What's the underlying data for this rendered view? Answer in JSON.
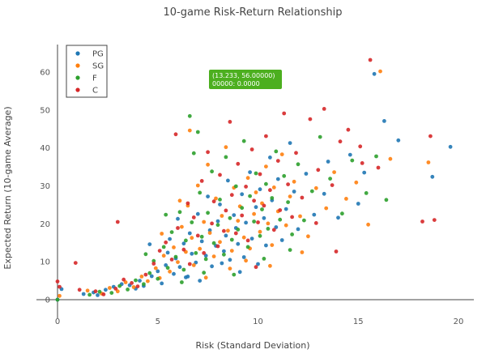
{
  "chart_data": {
    "type": "scatter",
    "title": "10-game Risk-Return Relationship",
    "xlabel": "Risk (Standard Deviation)",
    "ylabel": "Expected Return (10-game Average)",
    "xlim": [
      -1,
      21
    ],
    "ylim": [
      -2,
      66
    ],
    "xticks": [
      0,
      5,
      10,
      15,
      20
    ],
    "yticks": [
      0,
      10,
      20,
      30,
      40,
      50,
      60
    ],
    "grid": false,
    "legend_position": "top-left",
    "tooltip": {
      "line1": "(13.233, 56.00000)",
      "line2": "00000: 0.0000",
      "color": "#4caf1f"
    },
    "series": [
      {
        "name": "PG",
        "color": "#1f77b4",
        "points": [
          [
            0,
            0
          ],
          [
            0.2,
            2.8
          ],
          [
            1.3,
            1.5
          ],
          [
            1.8,
            1.9
          ],
          [
            2.0,
            1.2
          ],
          [
            2.4,
            2.6
          ],
          [
            2.8,
            3.4
          ],
          [
            3.2,
            4.1
          ],
          [
            3.6,
            3.8
          ],
          [
            3.9,
            2.9
          ],
          [
            4.1,
            5.0
          ],
          [
            4.3,
            3.6
          ],
          [
            4.7,
            6.2
          ],
          [
            5.0,
            7.5
          ],
          [
            5.2,
            4.3
          ],
          [
            5.4,
            9.1
          ],
          [
            5.5,
            12.4
          ],
          [
            5.8,
            6.8
          ],
          [
            5.9,
            10.9
          ],
          [
            6.1,
            8.6
          ],
          [
            6.3,
            14.8
          ],
          [
            6.4,
            5.9
          ],
          [
            6.6,
            17.5
          ],
          [
            6.7,
            12.1
          ],
          [
            6.9,
            9.8
          ],
          [
            7.0,
            22.6
          ],
          [
            7.2,
            15.4
          ],
          [
            7.4,
            11.6
          ],
          [
            7.5,
            27.2
          ],
          [
            7.6,
            18.3
          ],
          [
            7.7,
            8.8
          ],
          [
            7.9,
            14.2
          ],
          [
            8.0,
            20.7
          ],
          [
            8.1,
            25.1
          ],
          [
            8.3,
            12.8
          ],
          [
            8.4,
            16.9
          ],
          [
            8.5,
            31.4
          ],
          [
            8.6,
            10.5
          ],
          [
            8.8,
            22.3
          ],
          [
            8.9,
            18.9
          ],
          [
            9.0,
            14.7
          ],
          [
            9.2,
            27.8
          ],
          [
            9.3,
            11.2
          ],
          [
            9.4,
            20.3
          ],
          [
            9.6,
            33.6
          ],
          [
            9.7,
            16.1
          ],
          [
            9.9,
            24.4
          ],
          [
            10.0,
            9.4
          ],
          [
            10.1,
            29.1
          ],
          [
            10.3,
            21.5
          ],
          [
            10.4,
            14.3
          ],
          [
            10.6,
            37.5
          ],
          [
            10.7,
            26.2
          ],
          [
            10.9,
            19.1
          ],
          [
            11.0,
            31.8
          ],
          [
            11.2,
            15.7
          ],
          [
            11.4,
            23.9
          ],
          [
            11.6,
            41.3
          ],
          [
            11.8,
            28.5
          ],
          [
            12.0,
            18.6
          ],
          [
            12.4,
            33.2
          ],
          [
            12.8,
            22.4
          ],
          [
            13.3,
            27.9
          ],
          [
            13.5,
            36.4
          ],
          [
            14.0,
            21.6
          ],
          [
            14.6,
            38.2
          ],
          [
            15.0,
            25.3
          ],
          [
            15.3,
            33.5
          ],
          [
            15.8,
            59.5
          ],
          [
            16.3,
            47.1
          ],
          [
            17.0,
            42.0
          ],
          [
            18.7,
            32.4
          ],
          [
            19.6,
            40.3
          ],
          [
            6.5,
            6.1
          ],
          [
            7.1,
            5.0
          ],
          [
            8.2,
            9.6
          ],
          [
            9.1,
            7.3
          ],
          [
            5.6,
            16.0
          ],
          [
            6.0,
            21.3
          ],
          [
            4.6,
            14.6
          ]
        ]
      },
      {
        "name": "SG",
        "color": "#ff7f0e",
        "points": [
          [
            0.1,
            1.0
          ],
          [
            1.5,
            2.4
          ],
          [
            2.2,
            1.6
          ],
          [
            2.6,
            3.1
          ],
          [
            3.0,
            2.2
          ],
          [
            3.4,
            4.6
          ],
          [
            3.8,
            3.3
          ],
          [
            4.2,
            6.1
          ],
          [
            4.5,
            4.9
          ],
          [
            4.9,
            8.3
          ],
          [
            5.1,
            5.7
          ],
          [
            5.3,
            11.6
          ],
          [
            5.6,
            7.4
          ],
          [
            5.8,
            13.8
          ],
          [
            6.0,
            9.9
          ],
          [
            6.2,
            19.2
          ],
          [
            6.4,
            12.6
          ],
          [
            6.5,
            24.8
          ],
          [
            6.7,
            16.3
          ],
          [
            6.8,
            9.1
          ],
          [
            7.0,
            30.1
          ],
          [
            7.1,
            13.4
          ],
          [
            7.3,
            20.5
          ],
          [
            7.5,
            35.6
          ],
          [
            7.6,
            17.6
          ],
          [
            7.8,
            11.4
          ],
          [
            7.9,
            26.7
          ],
          [
            8.1,
            15.2
          ],
          [
            8.2,
            22.1
          ],
          [
            8.4,
            40.2
          ],
          [
            8.5,
            18.2
          ],
          [
            8.7,
            12.9
          ],
          [
            8.8,
            29.5
          ],
          [
            9.0,
            20.8
          ],
          [
            9.1,
            24.6
          ],
          [
            9.3,
            16.4
          ],
          [
            9.5,
            32.1
          ],
          [
            9.6,
            13.5
          ],
          [
            9.8,
            22.6
          ],
          [
            9.9,
            28.3
          ],
          [
            10.1,
            17.9
          ],
          [
            10.2,
            25.4
          ],
          [
            10.4,
            35.1
          ],
          [
            10.5,
            20.1
          ],
          [
            10.7,
            14.4
          ],
          [
            10.8,
            29.6
          ],
          [
            11.0,
            23.3
          ],
          [
            11.2,
            38.3
          ],
          [
            11.4,
            19.6
          ],
          [
            11.6,
            27.2
          ],
          [
            11.8,
            31.1
          ],
          [
            12.1,
            22.0
          ],
          [
            12.5,
            16.7
          ],
          [
            12.9,
            29.4
          ],
          [
            13.4,
            24.1
          ],
          [
            13.8,
            33.6
          ],
          [
            14.4,
            26.6
          ],
          [
            14.9,
            30.9
          ],
          [
            15.5,
            19.8
          ],
          [
            16.1,
            60.2
          ],
          [
            16.6,
            37.1
          ],
          [
            18.5,
            36.2
          ],
          [
            6.6,
            44.6
          ],
          [
            7.4,
            5.8
          ],
          [
            8.6,
            8.2
          ],
          [
            9.4,
            10.3
          ],
          [
            10.6,
            8.9
          ],
          [
            12.2,
            12.5
          ],
          [
            5.2,
            17.4
          ],
          [
            6.1,
            26.1
          ]
        ]
      },
      {
        "name": "F",
        "color": "#2ca02c",
        "points": [
          [
            0,
            0
          ],
          [
            1.6,
            1.3
          ],
          [
            2.1,
            2.1
          ],
          [
            2.7,
            1.8
          ],
          [
            3.1,
            3.6
          ],
          [
            3.5,
            2.7
          ],
          [
            3.9,
            5.1
          ],
          [
            4.3,
            4.1
          ],
          [
            4.6,
            7.0
          ],
          [
            4.8,
            10.2
          ],
          [
            5.0,
            5.5
          ],
          [
            5.3,
            13.9
          ],
          [
            5.5,
            8.4
          ],
          [
            5.7,
            17.8
          ],
          [
            5.9,
            11.3
          ],
          [
            6.1,
            23.1
          ],
          [
            6.3,
            7.9
          ],
          [
            6.4,
            15.6
          ],
          [
            6.6,
            48.4
          ],
          [
            6.7,
            20.4
          ],
          [
            6.9,
            12.3
          ],
          [
            7.1,
            28.2
          ],
          [
            7.2,
            16.6
          ],
          [
            7.4,
            10.7
          ],
          [
            7.5,
            22.9
          ],
          [
            7.7,
            33.8
          ],
          [
            7.8,
            14.9
          ],
          [
            8.0,
            19.7
          ],
          [
            8.1,
            26.4
          ],
          [
            8.3,
            11.9
          ],
          [
            8.4,
            37.6
          ],
          [
            8.6,
            21.5
          ],
          [
            8.7,
            15.8
          ],
          [
            8.9,
            29.9
          ],
          [
            9.0,
            18.5
          ],
          [
            9.2,
            24.2
          ],
          [
            9.3,
            41.8
          ],
          [
            9.5,
            13.9
          ],
          [
            9.6,
            27.3
          ],
          [
            9.8,
            20.6
          ],
          [
            9.9,
            33.3
          ],
          [
            10.1,
            16.8
          ],
          [
            10.2,
            23.8
          ],
          [
            10.4,
            30.5
          ],
          [
            10.5,
            18.7
          ],
          [
            10.7,
            26.8
          ],
          [
            10.9,
            39.1
          ],
          [
            11.1,
            21.1
          ],
          [
            11.3,
            32.6
          ],
          [
            11.5,
            25.7
          ],
          [
            11.7,
            17.2
          ],
          [
            12.0,
            35.7
          ],
          [
            12.3,
            20.9
          ],
          [
            12.7,
            28.6
          ],
          [
            13.1,
            42.9
          ],
          [
            13.6,
            31.9
          ],
          [
            14.2,
            22.7
          ],
          [
            14.7,
            36.7
          ],
          [
            15.4,
            28.1
          ],
          [
            15.9,
            37.8
          ],
          [
            16.4,
            26.3
          ],
          [
            6.8,
            38.6
          ],
          [
            6.2,
            4.6
          ],
          [
            7.3,
            7.1
          ],
          [
            8.8,
            6.6
          ],
          [
            10.3,
            10.8
          ],
          [
            11.6,
            13.1
          ],
          [
            5.4,
            22.4
          ],
          [
            4.4,
            12.0
          ],
          [
            7.0,
            44.2
          ]
        ]
      },
      {
        "name": "C",
        "color": "#d62728",
        "points": [
          [
            0,
            4.8
          ],
          [
            0.1,
            3.4
          ],
          [
            0.9,
            9.7
          ],
          [
            1.1,
            2.6
          ],
          [
            1.9,
            2.2
          ],
          [
            2.3,
            1.4
          ],
          [
            2.9,
            2.9
          ],
          [
            3.0,
            20.5
          ],
          [
            3.3,
            5.3
          ],
          [
            3.7,
            4.4
          ],
          [
            4.0,
            3.5
          ],
          [
            4.4,
            6.6
          ],
          [
            4.8,
            9.5
          ],
          [
            5.1,
            12.9
          ],
          [
            5.4,
            15.1
          ],
          [
            5.7,
            10.6
          ],
          [
            5.9,
            43.6
          ],
          [
            6.0,
            18.9
          ],
          [
            6.3,
            13.2
          ],
          [
            6.5,
            25.4
          ],
          [
            6.6,
            9.4
          ],
          [
            6.8,
            21.7
          ],
          [
            7.0,
            16.9
          ],
          [
            7.2,
            31.3
          ],
          [
            7.3,
            12.3
          ],
          [
            7.5,
            38.9
          ],
          [
            7.7,
            20.1
          ],
          [
            7.8,
            25.9
          ],
          [
            8.0,
            14.1
          ],
          [
            8.1,
            32.9
          ],
          [
            8.3,
            18.1
          ],
          [
            8.4,
            23.5
          ],
          [
            8.6,
            46.9
          ],
          [
            8.7,
            27.6
          ],
          [
            8.9,
            17.5
          ],
          [
            9.0,
            35.8
          ],
          [
            9.2,
            22.2
          ],
          [
            9.4,
            29.8
          ],
          [
            9.5,
            15.6
          ],
          [
            9.7,
            39.6
          ],
          [
            9.8,
            26.1
          ],
          [
            10.0,
            20.4
          ],
          [
            10.1,
            33.1
          ],
          [
            10.3,
            24.8
          ],
          [
            10.4,
            43.1
          ],
          [
            10.6,
            28.9
          ],
          [
            10.8,
            18.4
          ],
          [
            11.0,
            36.6
          ],
          [
            11.1,
            23.6
          ],
          [
            11.3,
            49.1
          ],
          [
            11.5,
            30.4
          ],
          [
            11.7,
            21.8
          ],
          [
            11.9,
            38.7
          ],
          [
            12.2,
            26.9
          ],
          [
            12.6,
            47.6
          ],
          [
            13.0,
            34.2
          ],
          [
            13.3,
            50.3
          ],
          [
            13.7,
            30.2
          ],
          [
            14.1,
            41.7
          ],
          [
            14.5,
            44.8
          ],
          [
            15.1,
            40.4
          ],
          [
            15.6,
            63.2
          ],
          [
            16.0,
            34.8
          ],
          [
            18.2,
            20.6
          ],
          [
            18.6,
            43.1
          ],
          [
            18.8,
            21.0
          ],
          [
            13.9,
            12.7
          ],
          [
            12.9,
            20.2
          ],
          [
            15.2,
            36.0
          ],
          [
            9.9,
            8.6
          ]
        ]
      }
    ]
  }
}
